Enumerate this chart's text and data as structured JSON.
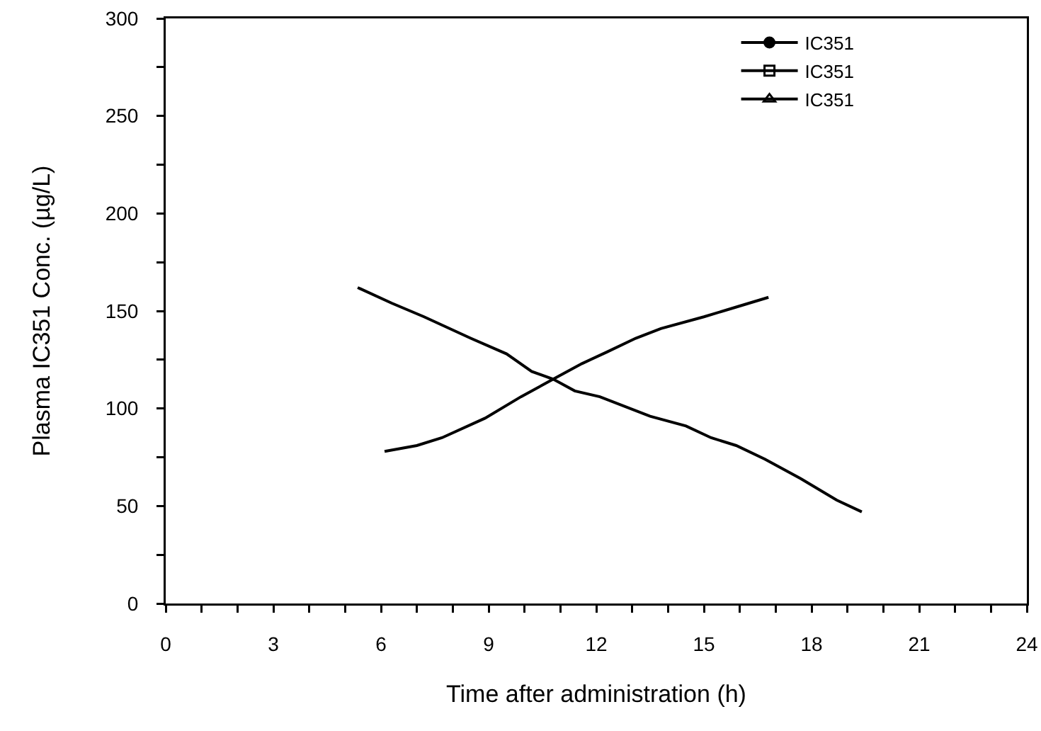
{
  "chart_data": {
    "type": "line",
    "xlabel": "Time after administration (h)",
    "ylabel": "Plasma IC351 Conc. (µg/L)",
    "xlim": [
      0,
      24
    ],
    "xticks": [
      0,
      {
        "value": 1,
        "label": null
      },
      {
        "value": 2,
        "label": null
      },
      3,
      {
        "value": 4,
        "label": null
      },
      {
        "value": 5,
        "label": null
      },
      6,
      {
        "value": 7,
        "label": null
      },
      {
        "value": 8,
        "label": null
      },
      9,
      {
        "value": 10,
        "label": null
      },
      {
        "value": 11,
        "label": null
      },
      12,
      {
        "value": 13,
        "label": null
      },
      {
        "value": 14,
        "label": null
      },
      15,
      {
        "value": 16,
        "label": null
      },
      {
        "value": 17,
        "label": null
      },
      18,
      {
        "value": 19,
        "label": null
      },
      {
        "value": 20,
        "label": null
      },
      21,
      {
        "value": 22,
        "label": null
      },
      {
        "value": 23,
        "label": null
      },
      24
    ],
    "ylim": [
      0,
      300
    ],
    "yticks": [
      0,
      {
        "value": 25,
        "label": null
      },
      50,
      {
        "value": 75,
        "label": null
      },
      100,
      {
        "value": 125,
        "label": null
      },
      150,
      {
        "value": 175,
        "label": null
      },
      200,
      {
        "value": 225,
        "label": null
      },
      250,
      {
        "value": 275,
        "label": null
      },
      300
    ],
    "grid": false,
    "legend": "top right",
    "line_style": "solid",
    "series": [
      {
        "name": "IC351",
        "color": "#000000",
        "marker": "circle"
      },
      {
        "name": "IC351",
        "color": "#000000",
        "marker": "square"
      },
      {
        "name": "IC351",
        "color": "#000000",
        "marker": "triangle"
      },
      {
        "color": "#000000",
        "marker": "none",
        "x": [
          5.35,
          6.3,
          7.2,
          8.5,
          9.5,
          10.2,
          10.8,
          11.4,
          12.1,
          13.5,
          14.5,
          15.2,
          15.9,
          16.7,
          17.7,
          18.7,
          19.4
        ],
        "values": [
          162,
          154,
          147,
          136,
          128,
          119,
          115,
          109,
          106,
          96,
          91,
          85,
          81,
          74,
          64,
          53,
          47
        ]
      },
      {
        "color": "#000000",
        "marker": "none",
        "x": [
          6.1,
          7,
          7.7,
          8.9,
          9.9,
          10.8,
          11.6,
          12.3,
          13.1,
          13.8,
          15,
          15.9,
          16.8
        ],
        "values": [
          78,
          81,
          85,
          95,
          106,
          115,
          123,
          129,
          136,
          141,
          147,
          152,
          157
        ]
      }
    ]
  }
}
